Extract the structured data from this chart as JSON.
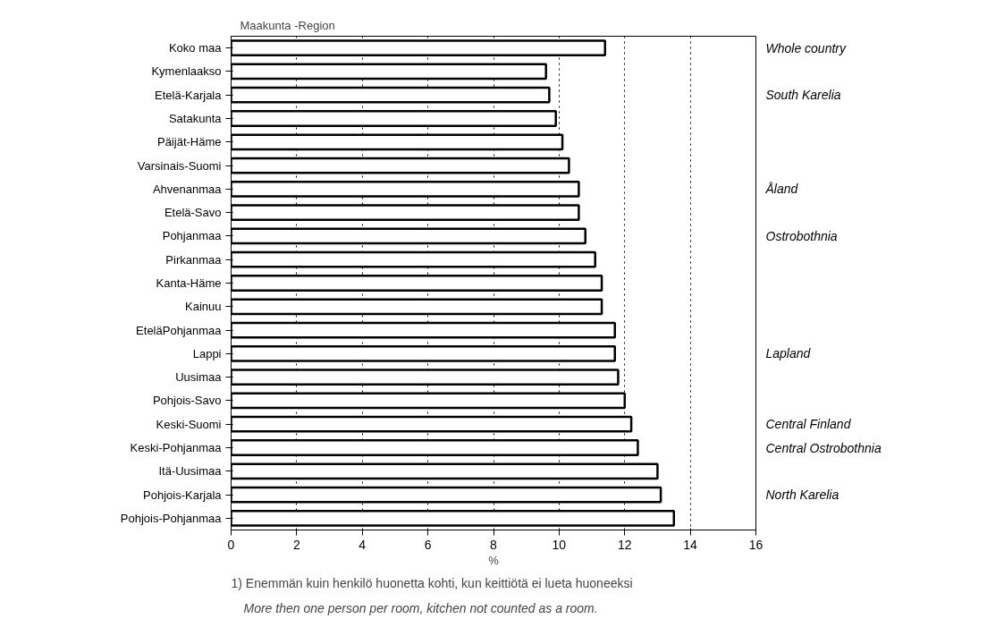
{
  "chart_data": {
    "type": "bar",
    "orientation": "horizontal",
    "ylabel": "Maakunta -Region",
    "xlabel": "%",
    "categories": [
      "Koko maa",
      "Kymenlaakso",
      "Etelä-Karjala",
      "Satakunta",
      "Päijät-Häme",
      "Varsinais-Suomi",
      "Ahvenanmaa",
      "Etelä-Savo",
      "Pohjanmaa",
      "Pirkanmaa",
      "Kanta-Häme",
      "Kainuu",
      "EteläPohjanmaa",
      "Lappi",
      "Uusimaa",
      "Pohjois-Savo",
      "Keski-Suomi",
      "Keski-Pohjanmaa",
      "Itä-Uusimaa",
      "Pohjois-Karjala",
      "Pohjois-Pohjanmaa"
    ],
    "values": [
      11.4,
      9.6,
      9.7,
      9.9,
      10.1,
      10.3,
      10.6,
      10.6,
      10.8,
      11.1,
      11.3,
      11.3,
      11.7,
      11.7,
      11.8,
      12.0,
      12.2,
      12.4,
      13.0,
      13.1,
      13.5
    ],
    "color": "#ffffff",
    "xlim": [
      0,
      16
    ],
    "xticks": [
      0,
      2,
      4,
      6,
      8,
      10,
      12,
      14,
      16
    ],
    "grid": "x",
    "line_style": "dotted",
    "y2_categories": [
      "Whole country",
      null,
      "South Karelia",
      null,
      null,
      null,
      "Åland",
      null,
      "Ostrobothnia",
      null,
      null,
      null,
      null,
      "Lapland",
      null,
      null,
      "Central Finland",
      "Central Ostrobothnia",
      null,
      "North Karelia",
      null
    ],
    "annotations": [
      "1) Enemmän kuin henkilö huonetta kohti, kun keittiötä ei lueta huoneeksi",
      "More then one person per room, kitchen not counted as a room."
    ]
  }
}
